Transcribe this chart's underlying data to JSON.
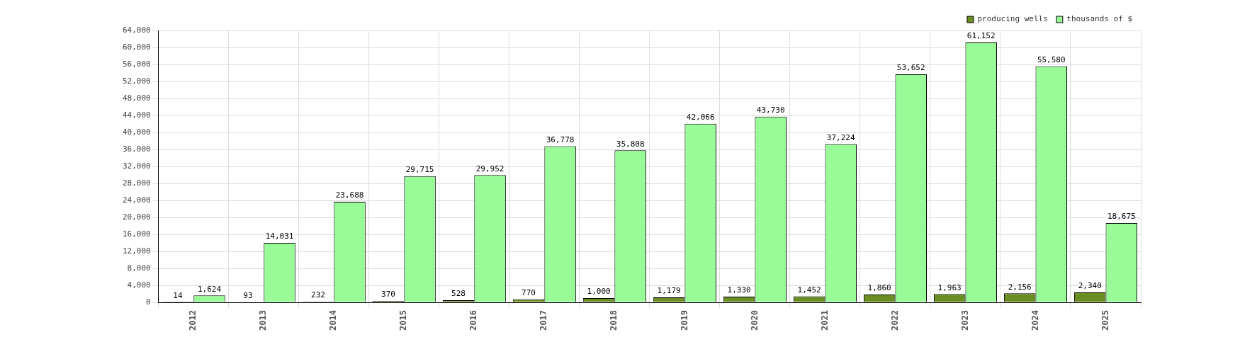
{
  "chart_data": {
    "type": "bar",
    "categories": [
      "2012",
      "2013",
      "2014",
      "2015",
      "2016",
      "2017",
      "2018",
      "2019",
      "2020",
      "2021",
      "2022",
      "2023",
      "2024",
      "2025"
    ],
    "series": [
      {
        "name": "producing wells",
        "color": "#6b8e23",
        "values": [
          14,
          93,
          232,
          370,
          528,
          770,
          1000,
          1179,
          1330,
          1452,
          1860,
          1963,
          2156,
          2340
        ],
        "value_labels": [
          "14",
          "93",
          "232",
          "370",
          "528",
          "770",
          "1,000",
          "1,179",
          "1,330",
          "1,452",
          "1,860",
          "1,963",
          "2,156",
          "2,340"
        ]
      },
      {
        "name": "thousands of $",
        "color": "#98fb98",
        "values": [
          1624,
          14031,
          23688,
          29715,
          29952,
          36778,
          35808,
          42066,
          43730,
          37224,
          53652,
          61152,
          55580,
          18675
        ],
        "value_labels": [
          "1,624",
          "14,031",
          "23,688",
          "29,715",
          "29,952",
          "36,778",
          "35,808",
          "42,066",
          "43,730",
          "37,224",
          "53,652",
          "61,152",
          "55,580",
          "18,675"
        ]
      }
    ],
    "ylim": [
      0,
      64000
    ],
    "yticks": [
      0,
      {
        "value": 4000,
        "label": "4,000"
      },
      {
        "value": 8000,
        "label": "8,000"
      },
      {
        "value": 12000,
        "label": "12,000"
      },
      {
        "value": 16000,
        "label": "16,000"
      },
      {
        "value": 20000,
        "label": "20,000"
      },
      {
        "value": 24000,
        "label": "24,000"
      },
      {
        "value": 28000,
        "label": "28,000"
      },
      {
        "value": 32000,
        "label": "32,000"
      },
      {
        "value": 36000,
        "label": "36,000"
      },
      {
        "value": 40000,
        "label": "40,000"
      },
      {
        "value": 44000,
        "label": "44,000"
      },
      {
        "value": 48000,
        "label": "48,000"
      },
      {
        "value": 52000,
        "label": "52,000"
      },
      {
        "value": 56000,
        "label": "56,000"
      },
      {
        "value": 60000,
        "label": "60,000"
      },
      {
        "value": 64000,
        "label": "64,000"
      }
    ],
    "grid": true,
    "legend": "top right"
  }
}
